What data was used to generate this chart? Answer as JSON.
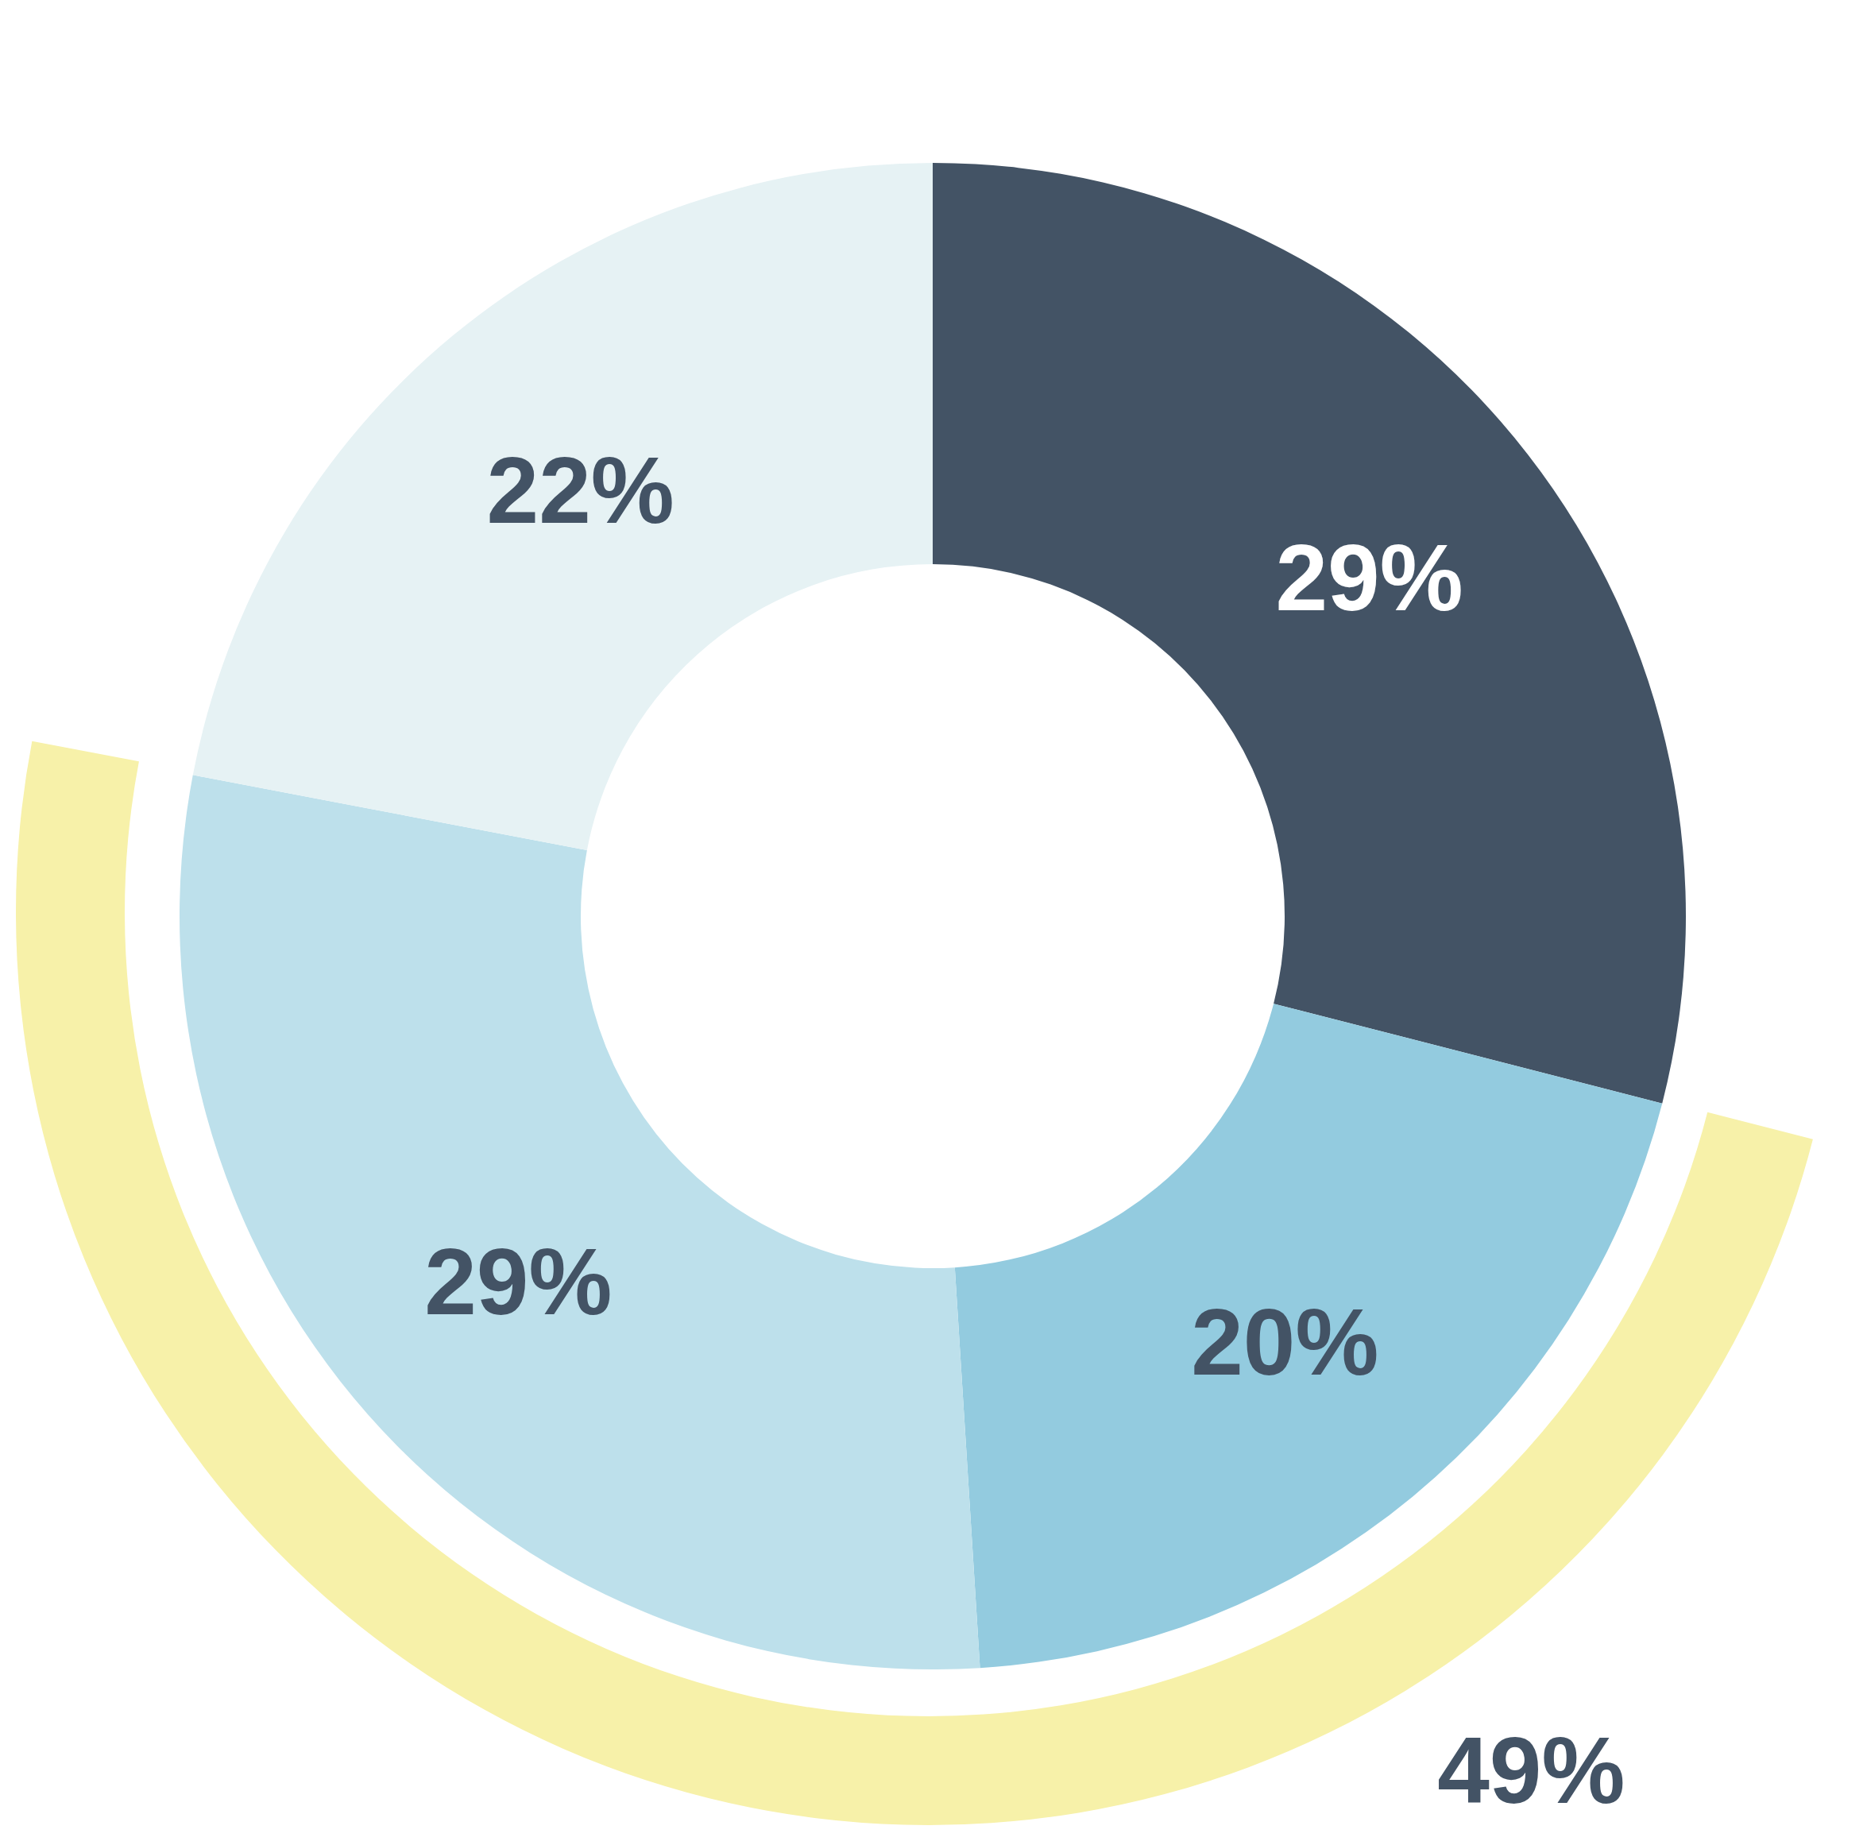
{
  "chart_data": {
    "type": "donut",
    "categories": [
      null,
      null,
      null,
      null
    ],
    "values": [
      29,
      20,
      29,
      22
    ],
    "colors": [
      "#435365",
      "#93cbdf",
      "#bde0eb",
      "#e6f2f4"
    ],
    "value_labels": [
      "29%",
      "20%",
      "29%",
      "22%"
    ],
    "annotations": [
      "49%"
    ],
    "legend": false
  }
}
